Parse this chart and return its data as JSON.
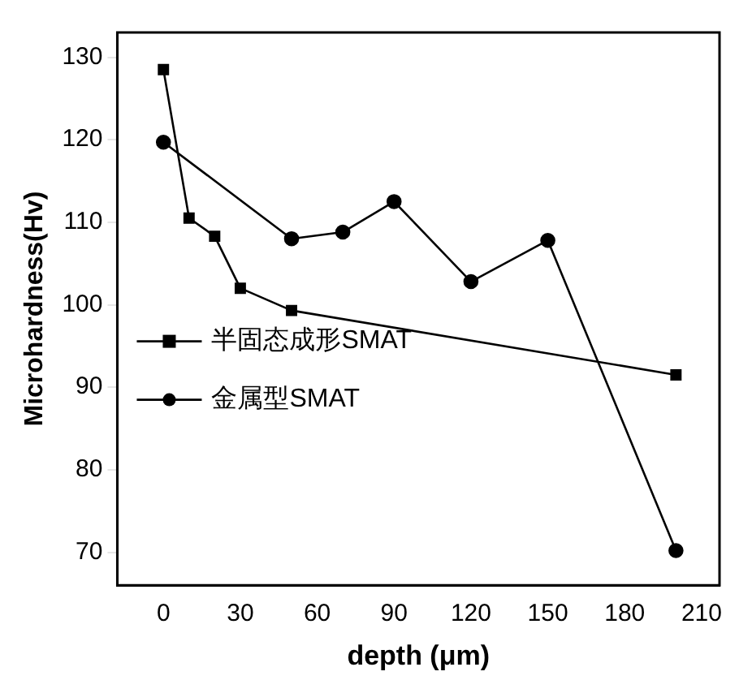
{
  "chart_data": {
    "type": "line",
    "xlabel": "depth (μm)",
    "ylabel": "Microhardness(Hv)",
    "xlim": [
      -18,
      217
    ],
    "xticks": [
      0,
      30,
      60,
      90,
      120,
      150,
      180,
      210
    ],
    "ylim": [
      66,
      133
    ],
    "yticks": [
      70,
      80,
      90,
      100,
      110,
      120,
      130
    ],
    "grid": false,
    "legend": "left",
    "line_style": "solid",
    "series": [
      {
        "name": "半固态成形SMAT",
        "color": "#000000",
        "marker": "square",
        "x": [
          0,
          10,
          20,
          30,
          50,
          200
        ],
        "values": [
          128.5,
          110.5,
          108.3,
          102,
          99.3,
          91.5
        ]
      },
      {
        "name": "金属型SMAT",
        "color": "#000000",
        "marker": "circle",
        "x": [
          0,
          50,
          70,
          90,
          120,
          150,
          200
        ],
        "values": [
          119.7,
          108,
          108.8,
          112.5,
          102.8,
          107.8,
          70.2
        ]
      }
    ]
  }
}
